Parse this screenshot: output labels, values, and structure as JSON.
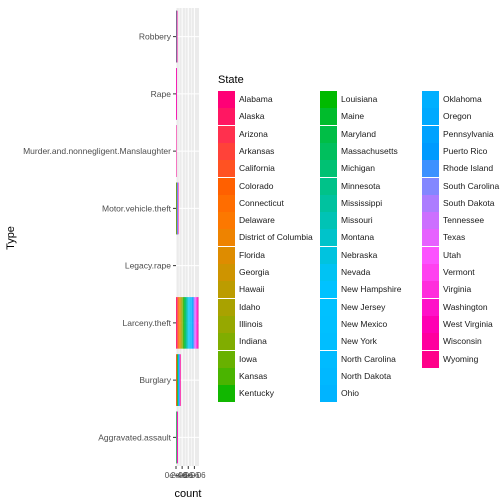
{
  "chart_data": {
    "type": "bar",
    "orientation": "horizontal",
    "stacked": true,
    "xlabel": "count",
    "ylabel": "Type",
    "x_tick_labels": [
      "0e+00",
      "2e+06",
      "4e+06",
      "6e+06"
    ],
    "xlim": [
      0,
      7500000
    ],
    "categories": [
      "Aggravated.assault",
      "Burglary",
      "Larceny.theft",
      "Legacy.rape",
      "Motor.vehicle.theft",
      "Murder.and.nonnegligent.Manslaughter",
      "Rape",
      "Robbery"
    ],
    "totals": [
      500000,
      1450000,
      7300000,
      0,
      700000,
      15000,
      100000,
      300000
    ],
    "legend": {
      "title": "State",
      "placement": "right",
      "entries": [
        "Alabama",
        "Alaska",
        "Arizona",
        "Arkansas",
        "California",
        "Colorado",
        "Connecticut",
        "Delaware",
        "District of Columbia",
        "Florida",
        "Georgia",
        "Hawaii",
        "Idaho",
        "Illinois",
        "Indiana",
        "Iowa",
        "Kansas",
        "Kentucky",
        "Louisiana",
        "Maine",
        "Maryland",
        "Massachusetts",
        "Michigan",
        "Minnesota",
        "Mississippi",
        "Missouri",
        "Montana",
        "Nebraska",
        "Nevada",
        "New Hampshire",
        "New Jersey",
        "New Mexico",
        "New York",
        "North Carolina",
        "North Dakota",
        "Ohio",
        "Oklahoma",
        "Oregon",
        "Pennsylvania",
        "Puerto Rico",
        "Rhode Island",
        "South Carolina",
        "South Dakota",
        "Tennessee",
        "Texas",
        "Utah",
        "Vermont",
        "Virginia",
        "Washington",
        "West Virginia",
        "Wisconsin",
        "Wyoming"
      ]
    },
    "grid": true,
    "panel_background": "#ebebeb",
    "grid_color": "#ffffff"
  }
}
